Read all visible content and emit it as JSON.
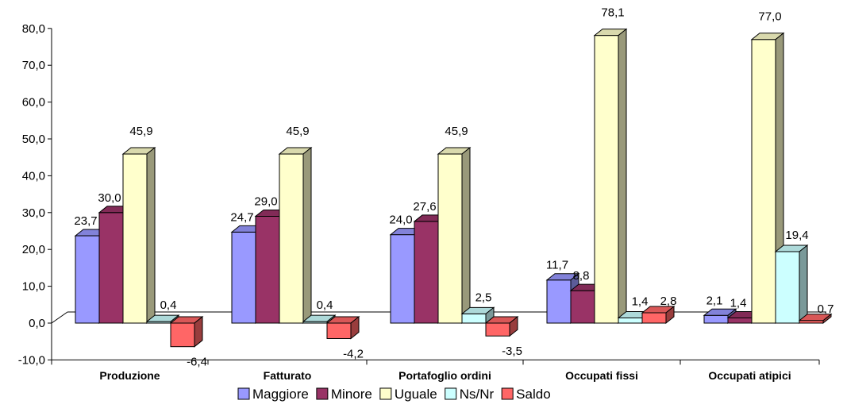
{
  "chart_data": {
    "type": "bar",
    "categories": [
      "Produzione",
      "Fatturato",
      "Portafoglio ordini",
      "Occupati fissi",
      "Occupati atipici"
    ],
    "series": [
      {
        "name": "Maggiore",
        "values": [
          23.7,
          24.7,
          24.0,
          11.7,
          2.1
        ],
        "color": "#9999ff"
      },
      {
        "name": "Minore",
        "values": [
          30.0,
          29.0,
          27.6,
          8.8,
          1.4
        ],
        "color": "#993366"
      },
      {
        "name": "Uguale",
        "values": [
          45.9,
          45.9,
          45.9,
          78.1,
          77.0
        ],
        "color": "#ffffcc"
      },
      {
        "name": "Ns/Nr",
        "values": [
          0.4,
          0.4,
          2.5,
          1.4,
          19.4
        ],
        "color": "#ccffff"
      },
      {
        "name": "Saldo",
        "values": [
          -6.4,
          -4.2,
          -3.5,
          2.8,
          0.7
        ],
        "color": "#ff6666"
      }
    ],
    "labels": {
      "Maggiore": [
        "23,7",
        "24,7",
        "24,0",
        "11,7",
        "2,1"
      ],
      "Minore": [
        "30,0",
        "29,0",
        "27,6",
        "8,8",
        "1,4"
      ],
      "Uguale": [
        "45,9",
        "45,9",
        "45,9",
        "78,1",
        "77,0"
      ],
      "Ns/Nr": [
        "0,4",
        "0,4",
        "2,5",
        "1,4",
        "19,4"
      ],
      "Saldo": [
        "-6,4",
        "-4,2",
        "-3,5",
        "2,8",
        "0,7"
      ]
    },
    "yticks": [
      "80,0",
      "70,0",
      "60,0",
      "50,0",
      "40,0",
      "30,0",
      "20,0",
      "10,0",
      "0,0",
      "-10,0"
    ],
    "ylim": [
      -10,
      80
    ],
    "title": "",
    "xlabel": "",
    "ylabel": "",
    "grid": false,
    "legend_position": "bottom"
  }
}
